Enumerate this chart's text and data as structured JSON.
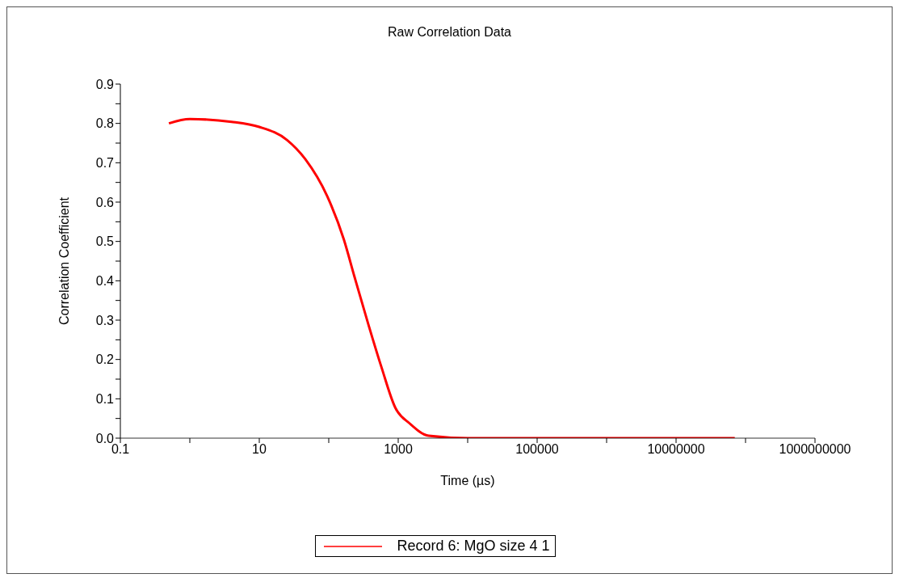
{
  "chart_data": {
    "type": "line",
    "title": "Raw Correlation Data",
    "xlabel": "Time (µs)",
    "ylabel": "Correlation Coefficient",
    "log": "x",
    "xlim": [
      0.1,
      1000000000
    ],
    "xticks": [
      0.1,
      {
        "value": 1,
        "label": null
      },
      10,
      {
        "value": 100,
        "label": null
      },
      1000,
      {
        "value": 10000,
        "label": null
      },
      100000,
      {
        "value": 1000000,
        "label": null
      },
      10000000,
      {
        "value": 100000000,
        "label": null
      },
      1000000000
    ],
    "ylim": [
      0,
      0.9
    ],
    "yticks": [
      {
        "value": 0,
        "label": "0.0"
      },
      {
        "value": 0.05,
        "label": null
      },
      0.1,
      {
        "value": 0.15,
        "label": null
      },
      0.2,
      {
        "value": 0.25,
        "label": null
      },
      0.3,
      {
        "value": 0.35,
        "label": null
      },
      0.4,
      {
        "value": 0.45,
        "label": null
      },
      0.5,
      {
        "value": 0.55,
        "label": null
      },
      0.6,
      {
        "value": 0.65,
        "label": null
      },
      0.7,
      {
        "value": 0.75,
        "label": null
      },
      0.8,
      {
        "value": 0.85,
        "label": null
      },
      0.9
    ],
    "grid": false,
    "legend": "bottom",
    "marker": "none",
    "line_style": "solid",
    "x": [
      0.5,
      1,
      4,
      10,
      25,
      46,
      95,
      165,
      235,
      372,
      575,
      910,
      1470,
      2750,
      10000,
      100000,
      1000000,
      10000000,
      70000000
    ],
    "series": [
      {
        "name": "Record 6: MgO size 4 1",
        "color": "#ff0000",
        "values": [
          0.8,
          0.811,
          0.804,
          0.791,
          0.758,
          0.709,
          0.615,
          0.505,
          0.41,
          0.289,
          0.18,
          0.077,
          0.037,
          0.006,
          0,
          0,
          0,
          0,
          0
        ]
      }
    ]
  }
}
